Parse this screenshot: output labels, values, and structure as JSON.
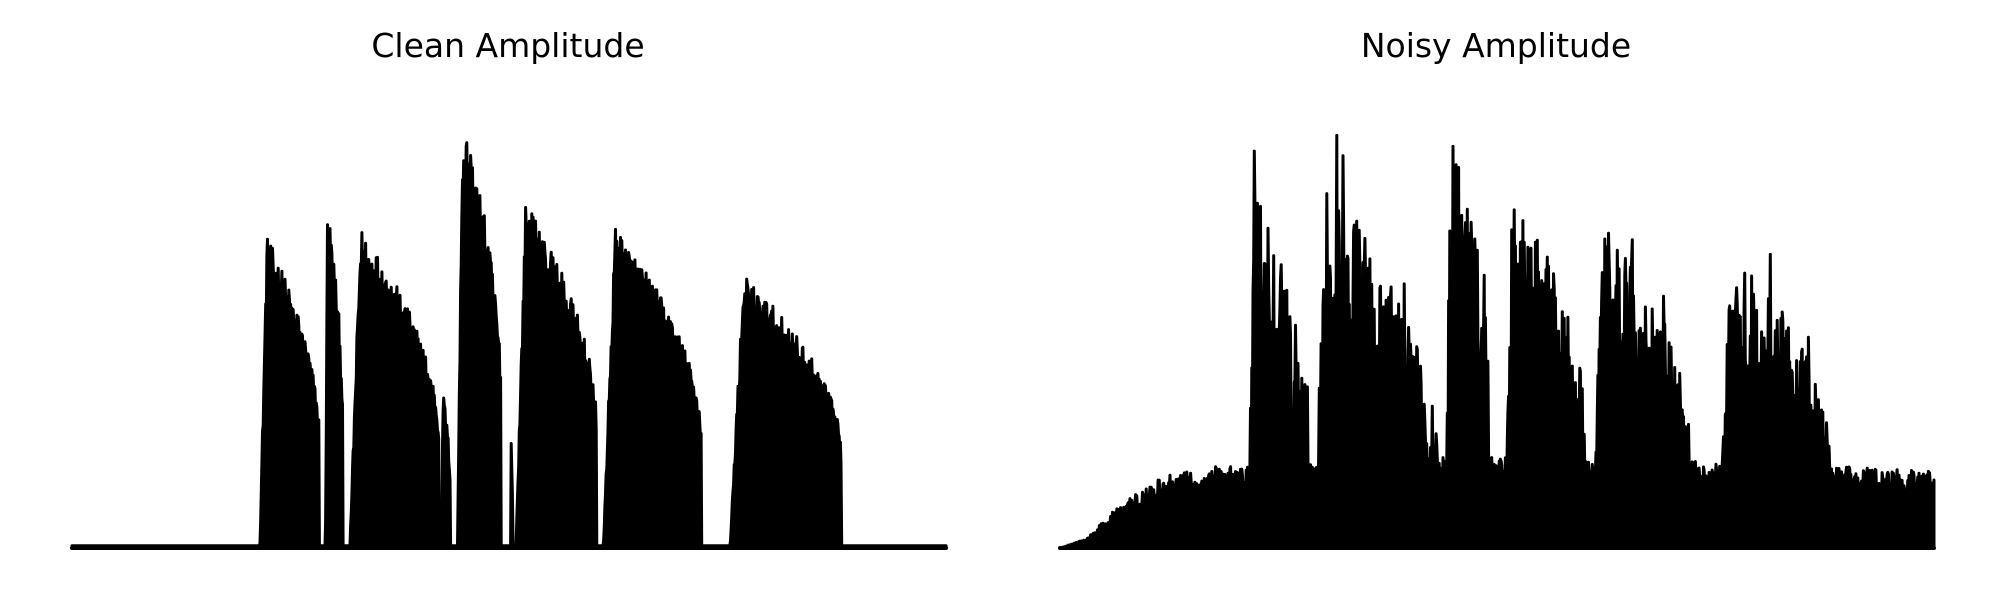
{
  "chart_data": [
    {
      "type": "line",
      "title": "Clean Amplitude",
      "xlabel": "",
      "ylabel": "",
      "axes_visible": false,
      "grid": false,
      "color": "#000000",
      "x_range": [
        0,
        1
      ],
      "ylim": [
        0,
        1
      ],
      "baseline": 0.005,
      "bursts": [
        {
          "start": 0.215,
          "end": 0.283,
          "peak": 0.72
        },
        {
          "start": 0.29,
          "end": 0.31,
          "peak": 0.8
        },
        {
          "start": 0.318,
          "end": 0.42,
          "peak": 0.74
        },
        {
          "start": 0.423,
          "end": 0.433,
          "peak": 0.37
        },
        {
          "start": 0.441,
          "end": 0.491,
          "peak": 1.0
        },
        {
          "start": 0.502,
          "end": 0.504,
          "peak": 0.28
        },
        {
          "start": 0.508,
          "end": 0.6,
          "peak": 0.8
        },
        {
          "start": 0.608,
          "end": 0.72,
          "peak": 0.74
        },
        {
          "start": 0.753,
          "end": 0.88,
          "peak": 0.63
        }
      ]
    },
    {
      "type": "line",
      "title": "Noisy Amplitude",
      "xlabel": "",
      "ylabel": "",
      "axes_visible": false,
      "grid": false,
      "color": "#000000",
      "x_range": [
        0,
        1
      ],
      "ylim": [
        0,
        1
      ],
      "noise_floor": [
        {
          "x": 0.0,
          "y": 0.0
        },
        {
          "x": 0.03,
          "y": 0.02
        },
        {
          "x": 0.07,
          "y": 0.1
        },
        {
          "x": 0.12,
          "y": 0.16
        },
        {
          "x": 0.18,
          "y": 0.18
        },
        {
          "x": 0.4,
          "y": 0.2
        },
        {
          "x": 0.6,
          "y": 0.2
        },
        {
          "x": 0.75,
          "y": 0.19
        },
        {
          "x": 0.9,
          "y": 0.18
        },
        {
          "x": 1.0,
          "y": 0.17
        }
      ],
      "bursts": [
        {
          "start": 0.215,
          "end": 0.285,
          "peak": 0.85
        },
        {
          "start": 0.29,
          "end": 0.42,
          "peak": 0.85
        },
        {
          "start": 0.423,
          "end": 0.433,
          "peak": 0.38
        },
        {
          "start": 0.441,
          "end": 0.491,
          "peak": 1.0
        },
        {
          "start": 0.508,
          "end": 0.6,
          "peak": 0.83
        },
        {
          "start": 0.608,
          "end": 0.72,
          "peak": 0.76
        },
        {
          "start": 0.753,
          "end": 0.88,
          "peak": 0.68
        }
      ]
    }
  ]
}
